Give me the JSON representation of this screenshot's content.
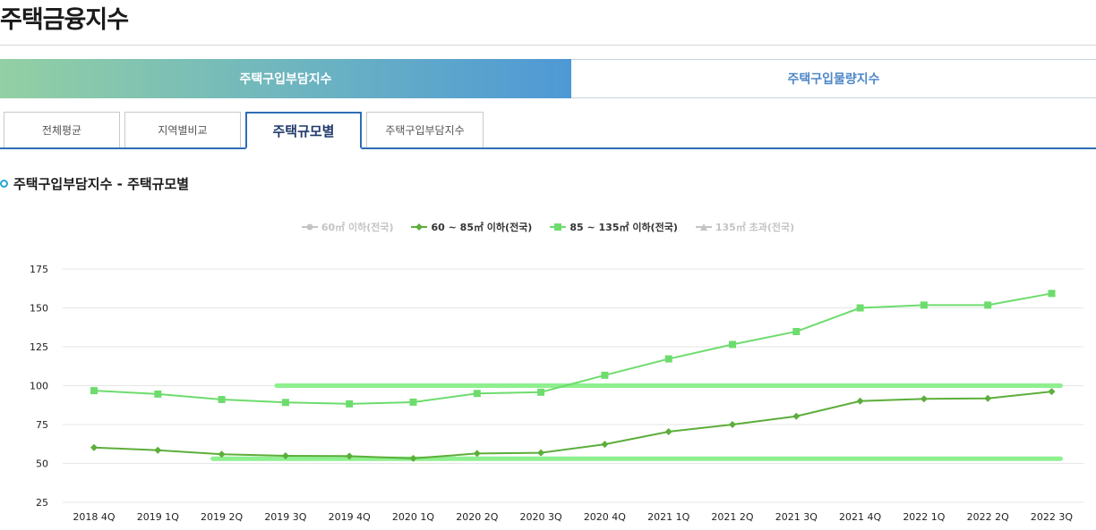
{
  "page_title": "주택금융지수",
  "main_tabs": [
    {
      "label": "주택구입부담지수",
      "active": true
    },
    {
      "label": "주택구입물량지수",
      "active": false
    }
  ],
  "sub_tabs": [
    {
      "label": "전체평균",
      "active": false
    },
    {
      "label": "지역별비교",
      "active": false
    },
    {
      "label": "주택규모별",
      "active": true
    },
    {
      "label": "주택구입부담지수",
      "active": false
    }
  ],
  "section_title": "주택구입부담지수 - 주택규모별",
  "colors": {
    "accent": "#2f6db5",
    "series_60_85": "#5cae3a",
    "series_85_135": "#6ddc6d",
    "reference_line": "#8ef08e",
    "legend_off": "#c4c4c4"
  },
  "chart_data": {
    "type": "line",
    "categories": [
      "2018 4Q",
      "2019 1Q",
      "2019 2Q",
      "2019 3Q",
      "2019 4Q",
      "2020 1Q",
      "2020 2Q",
      "2020 3Q",
      "2020 4Q",
      "2021 1Q",
      "2021 2Q",
      "2021 3Q",
      "2021 4Q",
      "2022 1Q",
      "2022 2Q",
      "2022 3Q"
    ],
    "y_ticks": [
      25,
      50,
      75,
      100,
      125,
      150,
      175
    ],
    "ylim": [
      25,
      175
    ],
    "grid": true,
    "legend_placement": "top-center",
    "legend": [
      {
        "name": "60㎡ 이하(전국)",
        "visible": false,
        "marker": "circle"
      },
      {
        "name": "60 ~ 85㎡ 이하(전국)",
        "visible": true,
        "marker": "diamond"
      },
      {
        "name": "85 ~ 135㎡ 이하(전국)",
        "visible": true,
        "marker": "square"
      },
      {
        "name": "135㎡ 초과(전국)",
        "visible": false,
        "marker": "triangle"
      }
    ],
    "series": [
      {
        "name": "60 ~ 85㎡ 이하(전국)",
        "color": "#5cae3a",
        "marker": "diamond",
        "values": [
          60.2,
          58.5,
          55.9,
          54.9,
          54.7,
          53.2,
          56.4,
          56.8,
          62.3,
          70.4,
          75.0,
          80.3,
          90.1,
          91.5,
          91.8,
          96.2
        ]
      },
      {
        "name": "85 ~ 135㎡ 이하(전국)",
        "color": "#6ddc6d",
        "marker": "square",
        "values": [
          96.8,
          94.6,
          91.1,
          89.2,
          88.3,
          89.4,
          95.0,
          95.8,
          106.7,
          117.2,
          126.5,
          134.8,
          150.0,
          151.8,
          151.8,
          159.3
        ]
      }
    ],
    "reference_lines": [
      {
        "y": 100,
        "x_from": "2019 3Q",
        "x_to": "2022 3Q",
        "color": "#8ef08e"
      },
      {
        "y": 53,
        "x_from": "2019 2Q",
        "x_to": "2022 3Q",
        "color": "#8ef08e"
      }
    ]
  }
}
